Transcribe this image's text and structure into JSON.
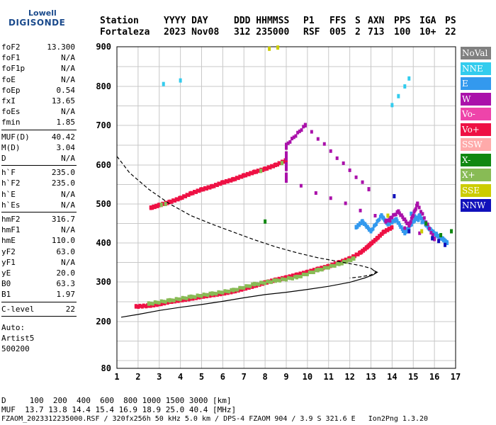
{
  "logo": {
    "top": "Lowell",
    "bottom": "DIGISONDE"
  },
  "header": {
    "labels": [
      "Station",
      "YYYY DAY",
      "DDD HHMMSS",
      "P1",
      "FFS",
      "S",
      "AXN",
      "PPS",
      "IGA",
      "PS"
    ],
    "values": [
      "Fortaleza",
      "2023 Nov08",
      "312 235000",
      "RSF",
      "005",
      "2",
      "713",
      "100",
      "10+",
      "22"
    ]
  },
  "sidebar": {
    "groups": [
      [
        {
          "k": "foF2",
          "v": "13.300"
        },
        {
          "k": "foF1",
          "v": "N/A"
        },
        {
          "k": "foF1p",
          "v": "N/A"
        },
        {
          "k": "foE",
          "v": "N/A"
        },
        {
          "k": "foEp",
          "v": "0.54"
        },
        {
          "k": "fxI",
          "v": "13.65"
        },
        {
          "k": "foEs",
          "v": "N/A"
        },
        {
          "k": "fmin",
          "v": "1.85"
        }
      ],
      [
        {
          "k": "MUF(D)",
          "v": "40.42"
        },
        {
          "k": "M(D)",
          "v": "3.04"
        },
        {
          "k": "D",
          "v": "N/A"
        }
      ],
      [
        {
          "k": "h`F",
          "v": "235.0"
        },
        {
          "k": "h`F2",
          "v": "235.0"
        },
        {
          "k": "h`E",
          "v": "N/A"
        },
        {
          "k": "h`Es",
          "v": "N/A"
        }
      ],
      [
        {
          "k": "hmF2",
          "v": "316.7"
        },
        {
          "k": "hmF1",
          "v": "N/A"
        },
        {
          "k": "hmE",
          "v": "110.0"
        },
        {
          "k": "yF2",
          "v": "63.0"
        },
        {
          "k": "yF1",
          "v": "N/A"
        },
        {
          "k": "yE",
          "v": "20.0"
        },
        {
          "k": "B0",
          "v": "63.3"
        },
        {
          "k": "B1",
          "v": "1.97"
        }
      ],
      [
        {
          "k": "C-level",
          "v": "22"
        }
      ]
    ],
    "auto": [
      "Auto:",
      "Artist5",
      "500200"
    ]
  },
  "legend": [
    {
      "label": "NoVal",
      "color": "#808080"
    },
    {
      "label": "NNE",
      "color": "#33ccee"
    },
    {
      "label": "E",
      "color": "#3399ee"
    },
    {
      "label": "W",
      "color": "#aa11aa"
    },
    {
      "label": "Vo-",
      "color": "#ee44aa"
    },
    {
      "label": "Vo+",
      "color": "#ee1144"
    },
    {
      "label": "SSW",
      "color": "#ffaaaa"
    },
    {
      "label": "X-",
      "color": "#118811"
    },
    {
      "label": "X+",
      "color": "#88bb55"
    },
    {
      "label": "SSE",
      "color": "#cccc00"
    },
    {
      "label": "NNW",
      "color": "#1111bb"
    }
  ],
  "footer": {
    "line1": "D     100  200  400  600  800 1000 1500 3000 [km]",
    "line2": "MUF  13.7 13.8 14.4 15.4 16.9 18.9 25.0 40.4 [MHz]",
    "line3": "FZAOM_2023312235000.RSF / 320fx256h 50 kHz 5.0 km / DPS-4 FZAOM 904 / 3.9 S 321.6 E   Ion2Png 1.3.20"
  },
  "chart_data": {
    "type": "scatter",
    "xlim": [
      1,
      17
    ],
    "ylim": [
      80,
      900
    ],
    "x_ticks": [
      "1",
      "2",
      "3",
      "4",
      "5",
      "6",
      "7",
      "8",
      "9",
      "10",
      "11",
      "12",
      "13",
      "14",
      "15",
      "16",
      "17"
    ],
    "y_ticks": [
      "80",
      "200",
      "300",
      "400",
      "500",
      "600",
      "700",
      "800",
      "900"
    ],
    "grid": true,
    "traces": [
      {
        "name": "O-trace lower",
        "color": "#ee1144",
        "points": [
          [
            1.9,
            238
          ],
          [
            2.5,
            240
          ],
          [
            3.0,
            244
          ],
          [
            3.5,
            250
          ],
          [
            4.0,
            254
          ],
          [
            4.5,
            258
          ],
          [
            5.0,
            263
          ],
          [
            5.5,
            267
          ],
          [
            6.0,
            271
          ],
          [
            6.5,
            276
          ],
          [
            7.0,
            283
          ],
          [
            7.5,
            290
          ],
          [
            8.0,
            298
          ],
          [
            8.5,
            305
          ],
          [
            9.0,
            311
          ],
          [
            9.5,
            318
          ],
          [
            10.0,
            325
          ],
          [
            10.5,
            333
          ],
          [
            11.0,
            340
          ],
          [
            11.5,
            350
          ],
          [
            12.0,
            360
          ],
          [
            12.5,
            375
          ],
          [
            12.8,
            388
          ],
          [
            13.0,
            398
          ],
          [
            13.3,
            412
          ],
          [
            13.6,
            428
          ],
          [
            14.0,
            440
          ]
        ]
      },
      {
        "name": "X-trace lower",
        "color": "#88bb55",
        "points": [
          [
            2.5,
            245
          ],
          [
            3.5,
            253
          ],
          [
            4.5,
            262
          ],
          [
            5.5,
            270
          ],
          [
            6.5,
            279
          ],
          [
            7.5,
            294
          ],
          [
            8.5,
            303
          ],
          [
            9.5,
            312
          ],
          [
            10.5,
            330
          ],
          [
            11.5,
            346
          ],
          [
            12.2,
            360
          ]
        ]
      },
      {
        "name": "O-trace upper",
        "color": "#ee1144",
        "points": [
          [
            2.6,
            490
          ],
          [
            3.0,
            497
          ],
          [
            3.5,
            505
          ],
          [
            4.0,
            515
          ],
          [
            4.5,
            527
          ],
          [
            5.0,
            537
          ],
          [
            5.5,
            545
          ],
          [
            6.0,
            555
          ],
          [
            6.5,
            563
          ],
          [
            7.0,
            573
          ],
          [
            7.5,
            582
          ],
          [
            8.0,
            590
          ],
          [
            8.5,
            600
          ],
          [
            9.0,
            612
          ]
        ]
      },
      {
        "name": "X-trace upper",
        "color": "#88bb55",
        "points": [
          [
            3.1,
            498
          ],
          [
            3.3,
            500
          ],
          [
            7.8,
            585
          ],
          [
            8.8,
            605
          ]
        ]
      },
      {
        "name": "NNE",
        "color": "#33ccee",
        "points": [
          [
            14.0,
            752
          ],
          [
            14.3,
            775
          ],
          [
            14.6,
            800
          ],
          [
            14.8,
            820
          ],
          [
            3.2,
            806
          ],
          [
            4.0,
            815
          ]
        ]
      },
      {
        "name": "spread",
        "color": "#3399ee",
        "points": [
          [
            12.3,
            440
          ],
          [
            12.6,
            455
          ],
          [
            13.0,
            430
          ],
          [
            13.5,
            470
          ],
          [
            13.8,
            448
          ],
          [
            14.2,
            460
          ],
          [
            14.6,
            425
          ],
          [
            15.0,
            455
          ],
          [
            15.3,
            470
          ],
          [
            15.7,
            440
          ],
          [
            16.1,
            420
          ],
          [
            16.4,
            410
          ],
          [
            16.6,
            400
          ],
          [
            14.9,
            475
          ]
        ]
      },
      {
        "name": "spread W",
        "color": "#aa11aa",
        "points": [
          [
            13.7,
            455
          ],
          [
            14.3,
            480
          ],
          [
            14.8,
            445
          ],
          [
            15.2,
            500
          ],
          [
            16.0,
            410
          ],
          [
            9.0,
            560
          ],
          [
            9.0,
            650
          ],
          [
            9.9,
            700
          ],
          [
            12.9,
            538
          ]
        ]
      },
      {
        "name": "spread NNW",
        "color": "#1111bb",
        "points": [
          [
            15.9,
            412
          ],
          [
            16.2,
            405
          ],
          [
            16.5,
            395
          ],
          [
            14.1,
            520
          ],
          [
            14.8,
            430
          ]
        ]
      },
      {
        "name": "spread X-",
        "color": "#118811",
        "points": [
          [
            16.3,
            420
          ],
          [
            16.8,
            430
          ],
          [
            15.6,
            450
          ],
          [
            8.0,
            455
          ]
        ]
      },
      {
        "name": "spread SSE",
        "color": "#cccc00",
        "points": [
          [
            8.2,
            895
          ],
          [
            8.6,
            898
          ],
          [
            13.8,
            470
          ],
          [
            15.4,
            430
          ]
        ]
      }
    ],
    "curves": [
      {
        "name": "profile dashed",
        "style": "dashed",
        "points": [
          [
            1.0,
            622
          ],
          [
            1.6,
            580
          ],
          [
            2.5,
            538
          ],
          [
            3.5,
            500
          ],
          [
            4.5,
            470
          ],
          [
            5.5,
            448
          ],
          [
            6.5,
            428
          ],
          [
            7.5,
            408
          ],
          [
            8.5,
            390
          ],
          [
            9.5,
            375
          ],
          [
            10.5,
            362
          ],
          [
            11.5,
            352
          ],
          [
            12.5,
            342
          ],
          [
            13.0,
            335
          ],
          [
            13.25,
            325
          ],
          [
            13.0,
            318
          ],
          [
            12.5,
            313
          ],
          [
            12.0,
            310
          ]
        ]
      },
      {
        "name": "profile solid",
        "style": "solid",
        "points": [
          [
            1.2,
            211
          ],
          [
            2.0,
            218
          ],
          [
            3.0,
            228
          ],
          [
            4.0,
            236
          ],
          [
            5.0,
            243
          ],
          [
            6.0,
            251
          ],
          [
            7.0,
            260
          ],
          [
            8.0,
            268
          ],
          [
            9.0,
            274
          ],
          [
            10.0,
            281
          ],
          [
            11.0,
            289
          ],
          [
            12.0,
            299
          ],
          [
            12.7,
            310
          ],
          [
            13.1,
            318
          ],
          [
            13.3,
            325
          ],
          [
            13.1,
            330
          ]
        ]
      }
    ]
  }
}
